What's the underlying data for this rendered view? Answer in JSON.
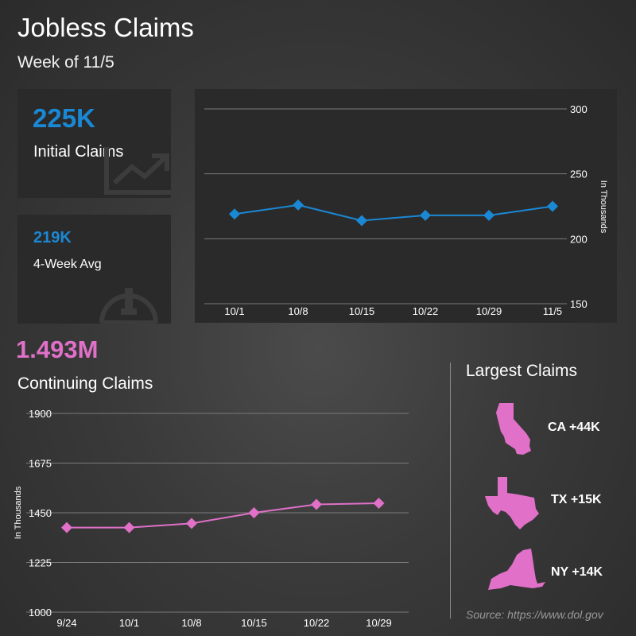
{
  "header": {
    "title": "Jobless Claims",
    "subtitle": "Week of 11/5"
  },
  "initial_claims": {
    "value": "225K",
    "label": "Initial Claims",
    "icon": "trending-up-chart-icon"
  },
  "four_week_avg": {
    "value": "219K",
    "label": "4-Week Avg",
    "icon": "gauge-icon"
  },
  "continuing_claims": {
    "value": "1.493M",
    "label": "Continuing Claims"
  },
  "largest_claims": {
    "title": "Largest Claims",
    "items": [
      {
        "state": "CA",
        "label": "CA +44K",
        "icon": "california-map-icon"
      },
      {
        "state": "TX",
        "label": "TX +15K",
        "icon": "texas-map-icon"
      },
      {
        "state": "NY",
        "label": "NY +14K",
        "icon": "new-york-map-icon"
      }
    ]
  },
  "source": "Source: https://www.dol.gov",
  "colors": {
    "blue": "#1a88d4",
    "pink": "#e070c8",
    "card": "#2a2a2a"
  },
  "chart_data": [
    {
      "type": "line",
      "categories": [
        "10/1",
        "10/8",
        "10/15",
        "10/22",
        "10/29",
        "11/5"
      ],
      "values": [
        219,
        226,
        214,
        218,
        218,
        225
      ],
      "ylabel": "In Thousands",
      "yticks": [
        150,
        200,
        250,
        300
      ],
      "ylim": [
        150,
        300
      ],
      "grid": true,
      "color": "#1a88d4",
      "marker": "diamond"
    },
    {
      "type": "line",
      "categories": [
        "9/24",
        "10/1",
        "10/8",
        "10/15",
        "10/22",
        "10/29"
      ],
      "values": [
        1383,
        1383,
        1402,
        1450,
        1488,
        1493
      ],
      "ylabel": "In Thousands",
      "yticks": [
        1000,
        1225,
        1450,
        1675,
        1900
      ],
      "ylim": [
        1000,
        1900
      ],
      "grid": true,
      "color": "#e070c8",
      "marker": "diamond"
    }
  ]
}
